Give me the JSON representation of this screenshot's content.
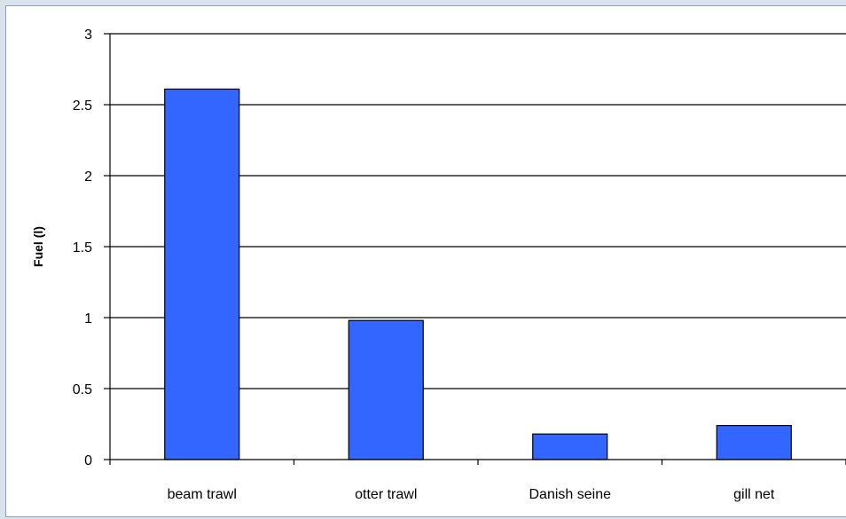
{
  "chart_data": {
    "type": "bar",
    "title": "",
    "xlabel": "",
    "ylabel": "Fuel (l)",
    "categories": [
      "beam trawl",
      "otter trawl",
      "Danish seine",
      "gill net"
    ],
    "values": [
      2.61,
      0.98,
      0.18,
      0.24
    ],
    "ylim": [
      0,
      3
    ],
    "yticks": [
      "0",
      "0.5",
      "1",
      "1.5",
      "2",
      "2.5",
      "3"
    ],
    "grid": true,
    "legend": "none",
    "bar_color": "#3366ff",
    "bar_edge_color": "#000000"
  }
}
